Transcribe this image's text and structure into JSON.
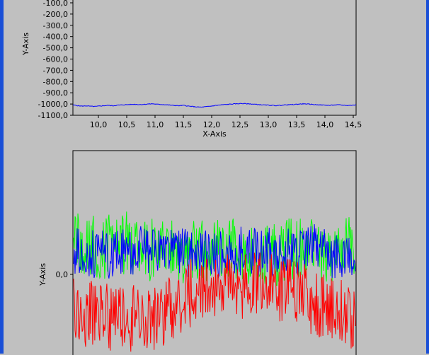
{
  "colors": {
    "background": "#c0c0c0",
    "plot_bg": "#c0c0c0",
    "frame": "#1a4fd6",
    "blue": "#0000ff",
    "green": "#00ff00",
    "red": "#ff0000"
  },
  "chart_data": [
    {
      "type": "line",
      "xlabel": "X-Axis",
      "ylabel": "Y-Axis",
      "xlim": [
        9.55,
        14.55
      ],
      "ylim": [
        -1100,
        -100
      ],
      "xticks": [
        10.0,
        10.5,
        11.0,
        11.5,
        12.0,
        12.5,
        13.0,
        13.5,
        14.0,
        14.5
      ],
      "xtick_labels": [
        "10,0",
        "10,5",
        "11,0",
        "11,5",
        "12,0",
        "12,5",
        "13,0",
        "13,5",
        "14,0",
        "14,5"
      ],
      "yticks": [
        -100,
        -200,
        -300,
        -400,
        -500,
        -600,
        -700,
        -800,
        -900,
        -1000,
        -1100
      ],
      "ytick_labels": [
        "-100,0",
        "-200,0",
        "-300,0",
        "-400,0",
        "-500,0",
        "-600,0",
        "-700,0",
        "-800,0",
        "-900,0",
        "-1000,0",
        "-1100,0"
      ],
      "grid": false,
      "series": [
        {
          "color": "#0000ff",
          "x_start": 9.55,
          "x_end": 14.55,
          "values": [
            -1008,
            -1014,
            -1019,
            -1016,
            -1020,
            -1022,
            -1018,
            -1015,
            -1012,
            -1016,
            -1011,
            -1008,
            -1006,
            -1004,
            -1002,
            -1005,
            -1003,
            -1000,
            -998,
            -1002,
            -1004,
            -1006,
            -1010,
            -1013,
            -1015,
            -1012,
            -1018,
            -1022,
            -1026,
            -1028,
            -1024,
            -1020,
            -1014,
            -1010,
            -1006,
            -1003,
            -1000,
            -998,
            -995,
            -997,
            -999,
            -1002,
            -1005,
            -1008,
            -1010,
            -1012,
            -1014,
            -1011,
            -1008,
            -1006,
            -1004,
            -1001,
            -998,
            -1000,
            -1003,
            -1006,
            -1008,
            -1010,
            -1012,
            -1009,
            -1007,
            -1010,
            -1013,
            -1011,
            -1008
          ]
        }
      ]
    },
    {
      "type": "line",
      "xlabel": "",
      "ylabel": "Y-Axis",
      "ylim": [
        -1.0,
        1.0
      ],
      "yticks": [
        0.0
      ],
      "ytick_labels": [
        "0,0"
      ],
      "grid": false,
      "series": [
        {
          "color": "#00ff00",
          "n": 400,
          "center": 0.22,
          "amplitude": 0.26,
          "seed": 3
        },
        {
          "color": "#0000ff",
          "n": 400,
          "center": 0.16,
          "amplitude": 0.2,
          "seed": 7
        },
        {
          "color": "#ff0000",
          "n": 400,
          "center": -0.22,
          "amplitude": 0.28,
          "seed": 11
        }
      ]
    }
  ]
}
